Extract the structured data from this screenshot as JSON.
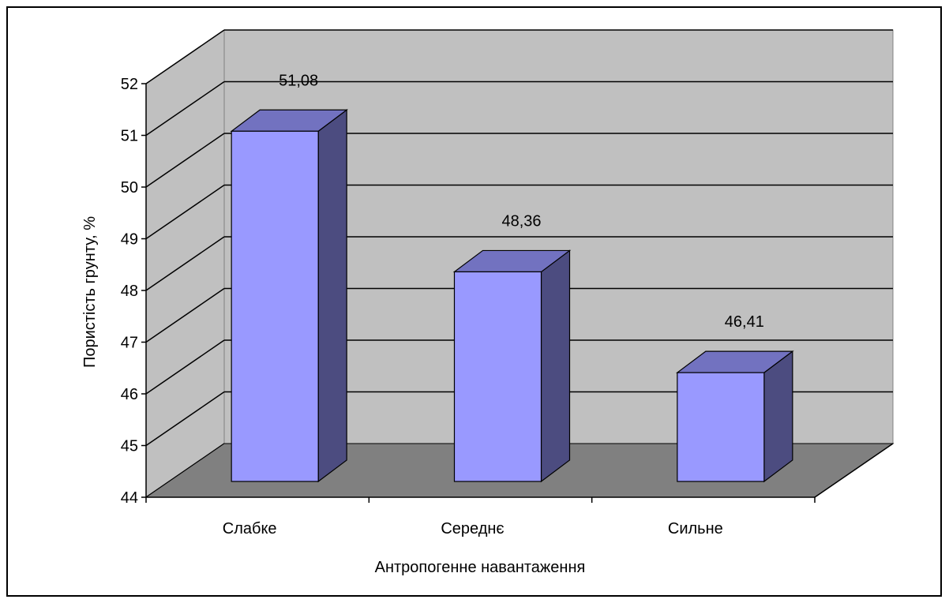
{
  "chart_data": {
    "type": "bar",
    "style": "3d-clustered-column",
    "categories": [
      "Слабке",
      "Середнє",
      "Сильне"
    ],
    "values": [
      51.08,
      48.36,
      46.41
    ],
    "data_labels": [
      "51,08",
      "48,36",
      "46,41"
    ],
    "title": "",
    "xlabel": "Антропогенне навантаження",
    "ylabel": "Пористість грунту, %",
    "ylim": [
      44,
      52
    ],
    "yticks": [
      "44",
      "45",
      "46",
      "47",
      "48",
      "49",
      "50",
      "51",
      "52"
    ],
    "grid": true,
    "legend": "none"
  },
  "colors": {
    "bar_front": "#9999ff",
    "bar_side": "#4c4c80",
    "bar_top": "#7272c0",
    "back_wall": "#c0c0c0",
    "floor": "#808080"
  }
}
